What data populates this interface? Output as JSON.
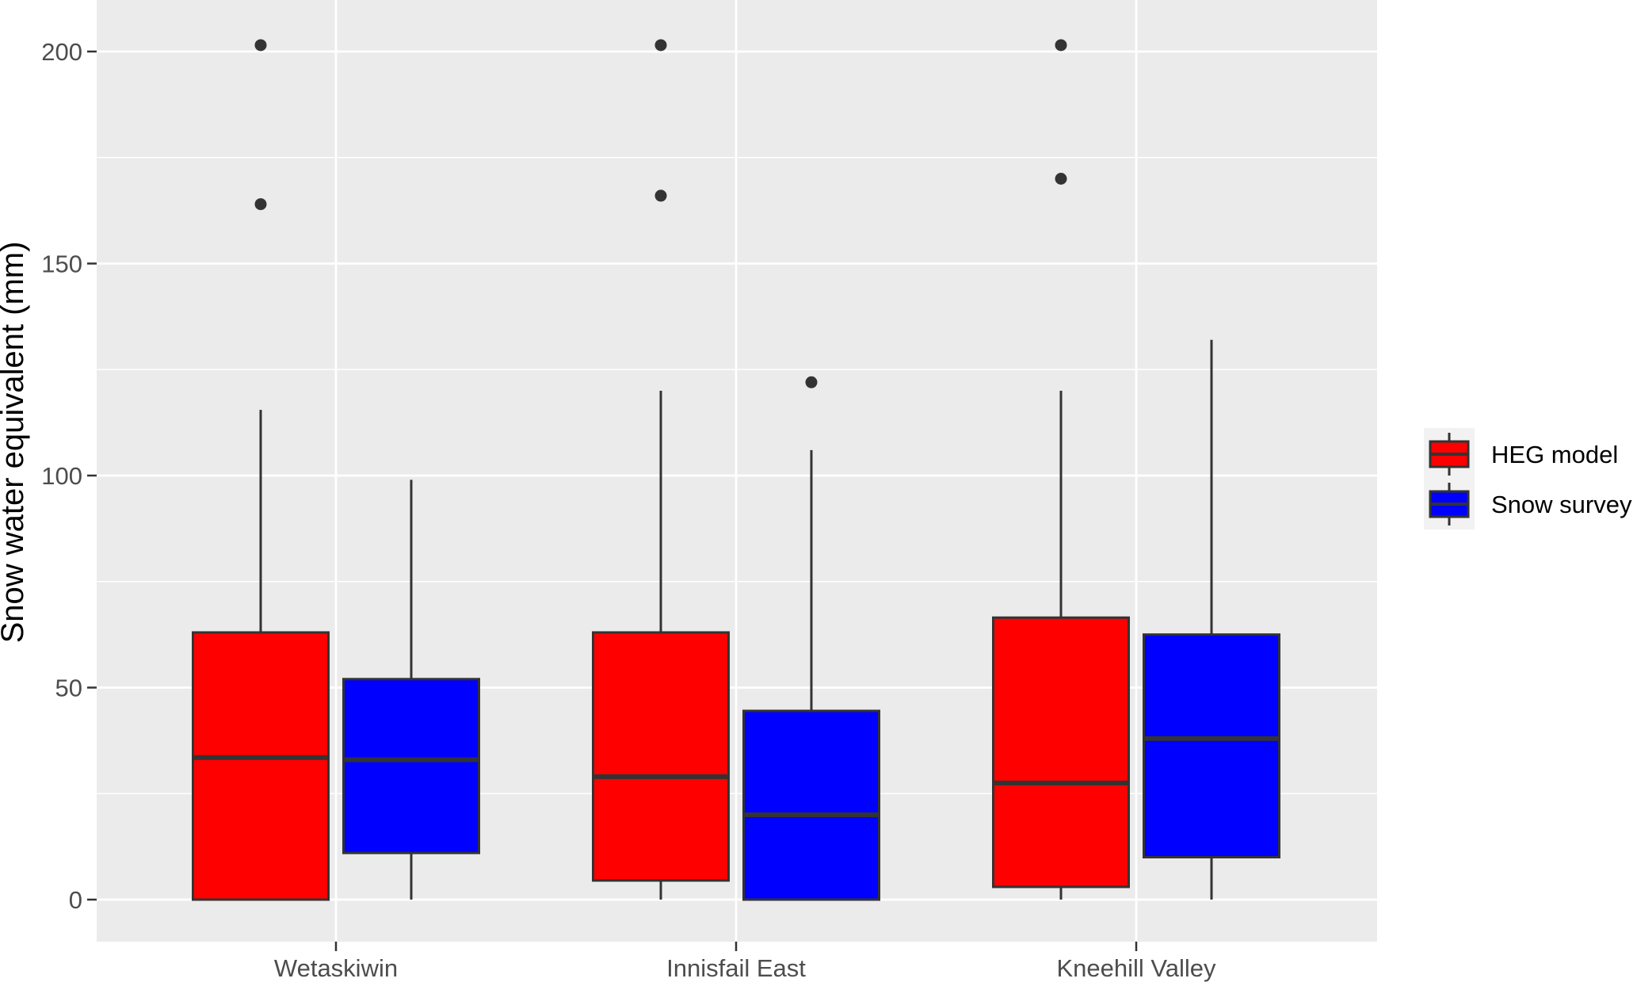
{
  "chart_data": {
    "type": "boxplot",
    "title": "",
    "xlabel": "",
    "ylabel": "Snow water equivalent (mm)",
    "ylim": [
      -10,
      212
    ],
    "yticks": [
      0,
      50,
      100,
      150,
      200
    ],
    "grid": true,
    "legend_position": "right",
    "categories": [
      "Wetaskiwin",
      "Innisfail East",
      "Kneehill Valley"
    ],
    "series": [
      {
        "name": "HEG model",
        "color": "#ff0000",
        "boxes": [
          {
            "lower_whisker": 0,
            "q1": 0,
            "median": 33.5,
            "q3": 63,
            "upper_whisker": 115.5,
            "outliers": [
              164,
              201.5
            ]
          },
          {
            "lower_whisker": 0,
            "q1": 4.5,
            "median": 29,
            "q3": 63,
            "upper_whisker": 120,
            "outliers": [
              166,
              201.5
            ]
          },
          {
            "lower_whisker": 0,
            "q1": 3,
            "median": 27.5,
            "q3": 66.5,
            "upper_whisker": 120,
            "outliers": [
              170,
              201.5
            ]
          }
        ]
      },
      {
        "name": "Snow survey",
        "color": "#0000ff",
        "boxes": [
          {
            "lower_whisker": 0,
            "q1": 11,
            "median": 33,
            "q3": 52,
            "upper_whisker": 99,
            "outliers": []
          },
          {
            "lower_whisker": 0,
            "q1": 0,
            "median": 20,
            "q3": 44.5,
            "upper_whisker": 106,
            "outliers": [
              122
            ]
          },
          {
            "lower_whisker": 0,
            "q1": 10,
            "median": 38,
            "q3": 62.5,
            "upper_whisker": 132,
            "outliers": []
          }
        ]
      }
    ]
  }
}
